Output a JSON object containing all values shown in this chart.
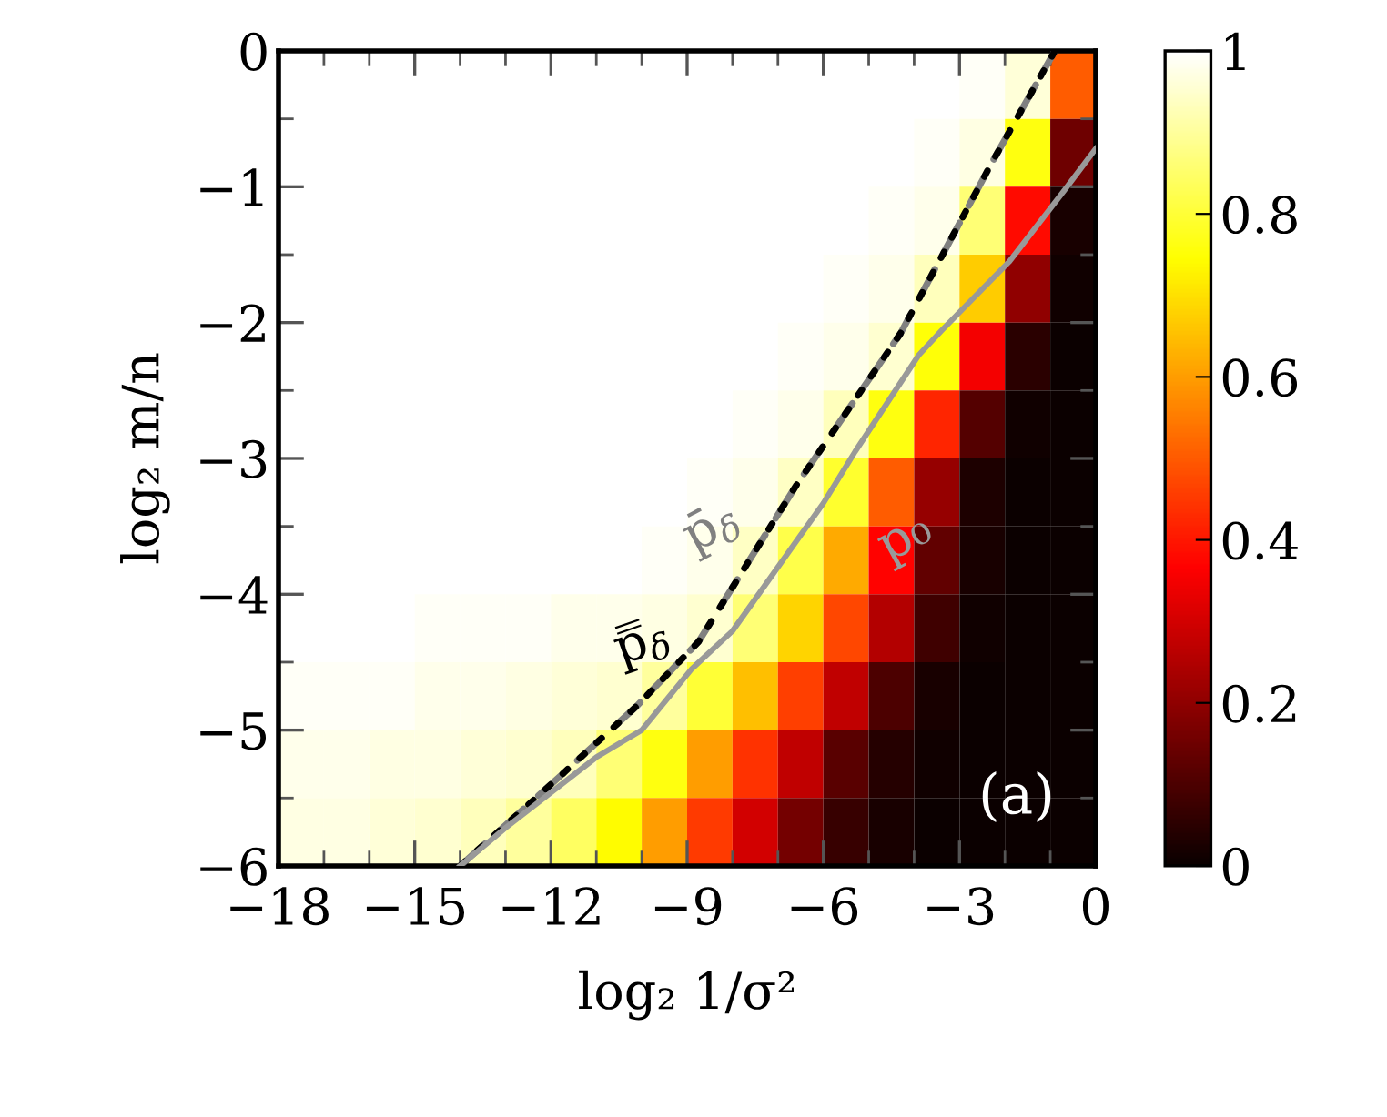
{
  "chart_data": {
    "type": "heatmap",
    "xlabel": "log₂ 1/σ²",
    "ylabel": "log₂ m/n",
    "x": [
      -17.5,
      -16.5,
      -15.5,
      -14.5,
      -13.5,
      -12.5,
      -11.5,
      -10.5,
      -9.5,
      -8.5,
      -7.5,
      -6.5,
      -5.5,
      -4.5,
      -3.5,
      -2.5,
      -1.5,
      -0.5
    ],
    "y": [
      -0.25,
      -0.75,
      -1.25,
      -1.75,
      -2.25,
      -2.75,
      -3.25,
      -3.75,
      -4.25,
      -4.75,
      -5.25,
      -5.75
    ],
    "cells": [
      [
        1,
        1,
        1,
        1,
        1,
        1,
        1,
        1,
        1,
        1,
        1,
        1,
        1,
        1,
        1,
        0.99,
        0.96,
        0.5
      ],
      [
        1,
        1,
        1,
        1,
        1,
        1,
        1,
        1,
        1,
        1,
        1,
        1,
        1,
        1,
        0.99,
        0.97,
        0.76,
        0.15
      ],
      [
        1,
        1,
        1,
        1,
        1,
        1,
        1,
        1,
        1,
        1,
        1,
        1,
        1,
        0.99,
        0.98,
        0.86,
        0.38,
        0.02
      ],
      [
        1,
        1,
        1,
        1,
        1,
        1,
        1,
        1,
        1,
        1,
        1,
        1,
        0.99,
        0.98,
        0.93,
        0.67,
        0.2,
        0.01
      ],
      [
        1,
        1,
        1,
        1,
        1,
        1,
        1,
        1,
        1,
        1,
        1,
        0.99,
        0.98,
        0.95,
        0.75,
        0.35,
        0.05,
        0
      ],
      [
        1,
        1,
        1,
        1,
        1,
        1,
        1,
        1,
        1,
        1,
        0.99,
        0.98,
        0.93,
        0.76,
        0.42,
        0.11,
        0.01,
        0
      ],
      [
        1,
        1,
        1,
        1,
        1,
        1,
        1,
        1,
        1,
        0.99,
        0.98,
        0.94,
        0.79,
        0.5,
        0.21,
        0.03,
        0,
        0
      ],
      [
        1,
        1,
        1,
        1,
        1,
        1,
        1,
        1,
        0.99,
        0.98,
        0.94,
        0.82,
        0.62,
        0.37,
        0.13,
        0.02,
        0,
        0
      ],
      [
        1,
        1,
        1,
        0.99,
        0.99,
        0.99,
        0.98,
        0.98,
        0.97,
        0.95,
        0.86,
        0.68,
        0.47,
        0.25,
        0.08,
        0.01,
        0,
        0
      ],
      [
        0.99,
        0.99,
        0.99,
        0.98,
        0.98,
        0.97,
        0.96,
        0.95,
        0.9,
        0.8,
        0.65,
        0.46,
        0.27,
        0.1,
        0.02,
        0,
        0,
        0
      ],
      [
        0.98,
        0.98,
        0.97,
        0.97,
        0.96,
        0.95,
        0.93,
        0.86,
        0.76,
        0.6,
        0.44,
        0.27,
        0.12,
        0.04,
        0.01,
        0,
        0,
        0
      ],
      [
        0.97,
        0.97,
        0.96,
        0.95,
        0.93,
        0.9,
        0.84,
        0.74,
        0.6,
        0.45,
        0.3,
        0.16,
        0.07,
        0.02,
        0,
        0,
        0,
        0
      ]
    ],
    "clim": [
      0,
      1
    ],
    "cticks": [
      0,
      0.2,
      0.4,
      0.6,
      0.8,
      1
    ],
    "series": [
      {
        "name": "p̄$_{δ}$",
        "type": "line",
        "color": "#808080",
        "line_style": "dashed",
        "x": [
          -14,
          -11.8,
          -10.1,
          -8.75,
          -6.6,
          -4.3,
          -2.3,
          -0.9
        ],
        "values": [
          -6,
          -5.34,
          -4.82,
          -4.35,
          -3.2,
          -2.08,
          -0.83,
          0
        ]
      },
      {
        "name": "p̿$_{δ}$",
        "type": "line",
        "color": "#000000",
        "line_style": "dotted",
        "x": [
          -14,
          -11.8,
          -10.1,
          -8.75,
          -6.6,
          -4.3,
          -2.3,
          -0.9
        ],
        "values": [
          -6,
          -5.34,
          -4.82,
          -4.35,
          -3.2,
          -2.08,
          -0.83,
          0
        ]
      },
      {
        "name": "p₀",
        "type": "line",
        "color": "#999999",
        "line_style": "solid",
        "x": [
          -14,
          -13,
          -11,
          -10,
          -8.9,
          -8,
          -6,
          -5.3,
          -3.9,
          -3.4,
          -1.9,
          -0.7,
          0
        ],
        "values": [
          -6,
          -5.72,
          -5.2,
          -5,
          -4.55,
          -4.27,
          -3.33,
          -2.95,
          -2.24,
          -2.06,
          -1.55,
          -1.03,
          -0.72
        ]
      }
    ],
    "xlim": [
      -18,
      0
    ],
    "xticks": [
      {
        "value": -18,
        "label": "−18"
      },
      {
        "value": -15,
        "label": "−15"
      },
      {
        "value": -12,
        "label": "−12"
      },
      {
        "value": -9,
        "label": "−9"
      },
      {
        "value": -6,
        "label": "−6"
      },
      {
        "value": -3,
        "label": "−3"
      },
      0
    ],
    "ylim": [
      -6,
      0
    ],
    "yticks": [
      {
        "value": -6,
        "label": "−6"
      },
      {
        "value": -5,
        "label": "−5"
      },
      {
        "value": -4,
        "label": "−4"
      },
      {
        "value": -3,
        "label": "−3"
      },
      {
        "value": -2,
        "label": "−2"
      },
      {
        "value": -1,
        "label": "−1"
      },
      0
    ],
    "annotations": [
      "(a)"
    ],
    "grid": false,
    "legend": false
  }
}
